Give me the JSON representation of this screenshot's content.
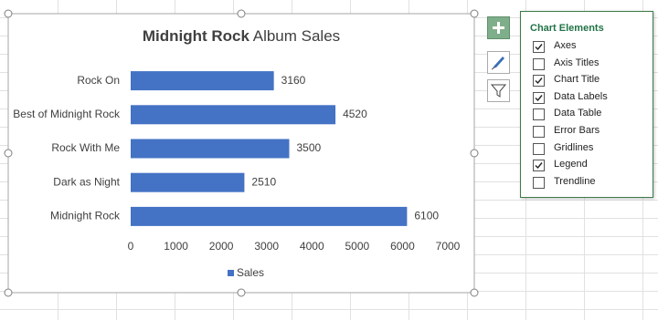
{
  "chart_data": {
    "type": "hbar",
    "title": [
      "Midnight Rock",
      "Album Sales"
    ],
    "categories": [
      "Midnight Rock",
      "Dark as Night",
      "Rock With Me",
      "Best of Midnight Rock",
      "Rock On"
    ],
    "series": [
      {
        "name": "Sales",
        "color": "#4472c4",
        "values": [
          6100,
          2510,
          3500,
          4520,
          3160
        ]
      }
    ],
    "xlim": [
      0,
      7000
    ],
    "xticks": [
      0,
      1000,
      2000,
      3000,
      4000,
      5000,
      6000,
      7000
    ],
    "grid": false,
    "legend": "bottom",
    "data_labels": true
  },
  "panel": {
    "title": "Chart Elements",
    "items": [
      {
        "label": "Axes",
        "checked": true
      },
      {
        "label": "Axis Titles",
        "checked": false
      },
      {
        "label": "Chart Title",
        "checked": true
      },
      {
        "label": "Data Labels",
        "checked": true
      },
      {
        "label": "Data Table",
        "checked": false
      },
      {
        "label": "Error Bars",
        "checked": false
      },
      {
        "label": "Gridlines",
        "checked": false
      },
      {
        "label": "Legend",
        "checked": true
      },
      {
        "label": "Trendline",
        "checked": false
      }
    ]
  }
}
